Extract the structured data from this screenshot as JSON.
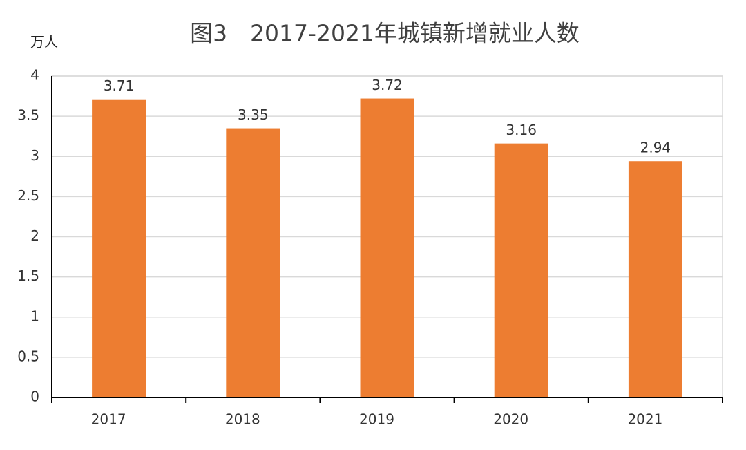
{
  "chart_data": {
    "type": "bar",
    "title": "图3　2017-2021年城镇新增就业人数",
    "y_label": "万人",
    "categories": [
      "2017",
      "2018",
      "2019",
      "2020",
      "2021"
    ],
    "values": [
      3.71,
      3.35,
      3.72,
      3.16,
      2.94
    ],
    "color": "#ed7d31",
    "ylim": [
      0,
      4
    ],
    "yticks": [
      0,
      0.5,
      1,
      1.5,
      2,
      2.5,
      3,
      3.5,
      4
    ],
    "grid": true
  }
}
